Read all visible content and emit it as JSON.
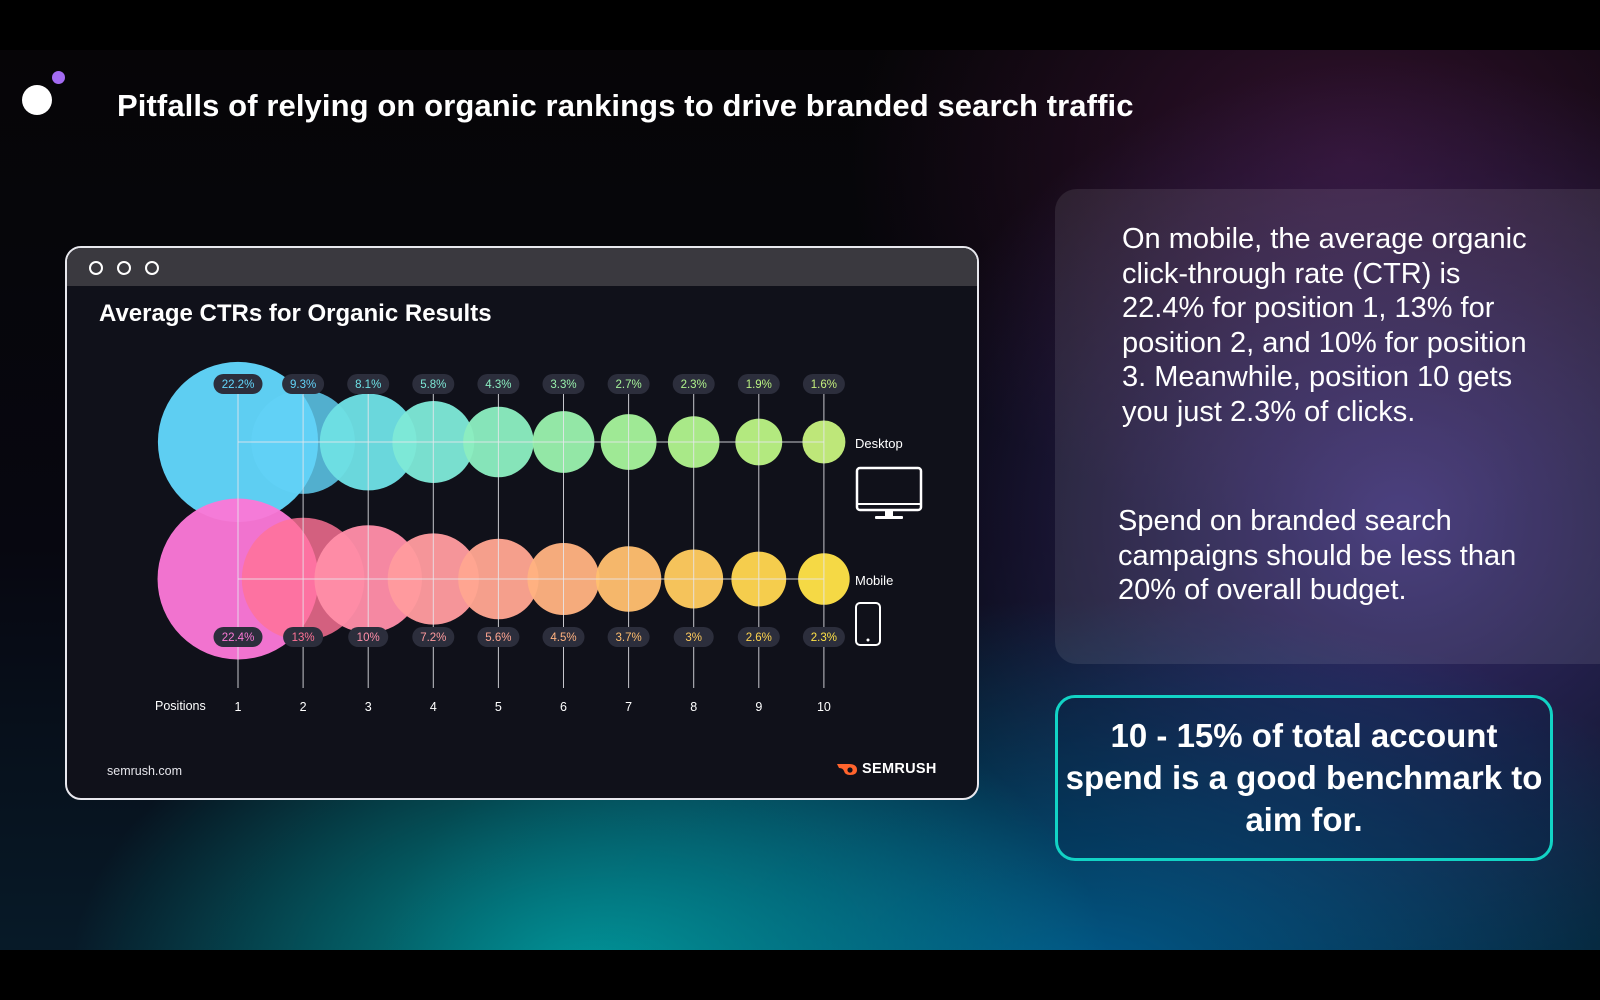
{
  "slide": {
    "title": "Pitfalls of relying on organic rankings to drive branded search traffic"
  },
  "card": {
    "title": "Average CTRs for Organic Results",
    "footer_source": "semrush.com",
    "brand": "SEMRUSH",
    "device_labels": {
      "desktop": "Desktop",
      "mobile": "Mobile"
    },
    "positions_label": "Positions"
  },
  "chart_data": {
    "type": "scatter",
    "title": "Average CTRs for Organic Results",
    "xlabel": "Positions",
    "categories": [
      "1",
      "2",
      "3",
      "4",
      "5",
      "6",
      "7",
      "8",
      "9",
      "10"
    ],
    "series": [
      {
        "name": "Desktop",
        "values": [
          22.2,
          9.3,
          8.1,
          5.8,
          4.3,
          3.3,
          2.7,
          2.3,
          1.9,
          1.6
        ],
        "labels": [
          "22.2%",
          "9.3%",
          "8.1%",
          "5.8%",
          "4.3%",
          "3.3%",
          "2.7%",
          "2.3%",
          "1.9%",
          "1.6%"
        ],
        "colors": [
          "#62d6fb",
          "#62d2f7",
          "#6ee0e4",
          "#7ee8d6",
          "#8bedc0",
          "#99f0ac",
          "#a6f39a",
          "#b0f38d",
          "#baf283",
          "#c6f07d"
        ]
      },
      {
        "name": "Mobile",
        "values": [
          22.4,
          13,
          10,
          7.2,
          5.6,
          4.5,
          3.7,
          3,
          2.6,
          2.3
        ],
        "labels": [
          "22.4%",
          "13%",
          "10%",
          "7.2%",
          "5.6%",
          "4.5%",
          "3.7%",
          "3%",
          "2.6%",
          "2.3%"
        ],
        "colors": [
          "#fb78d6",
          "#ff7296",
          "#ff8ea8",
          "#ff9b9e",
          "#ffa591",
          "#ffb280",
          "#ffbe6e",
          "#ffcb5e",
          "#ffd54f",
          "#ffe247"
        ]
      }
    ],
    "grid": true,
    "legend": "right"
  },
  "panel": {
    "paragraph1": "On mobile, the average organic click-through rate (CTR) is 22.4% for position 1, 13% for position 2, and 10% for position 3. Meanwhile, position 10 gets you just 2.3% of clicks.",
    "paragraph2": "Spend on branded search campaigns should be less than 20% of overall budget."
  },
  "callout": {
    "text": "10 - 15% of total account spend is a good benchmark to aim for."
  },
  "colors": {
    "callout_border": "#12d3c5",
    "logo_accent": "#a36bf2",
    "semrush_orange": "#ff642d"
  }
}
